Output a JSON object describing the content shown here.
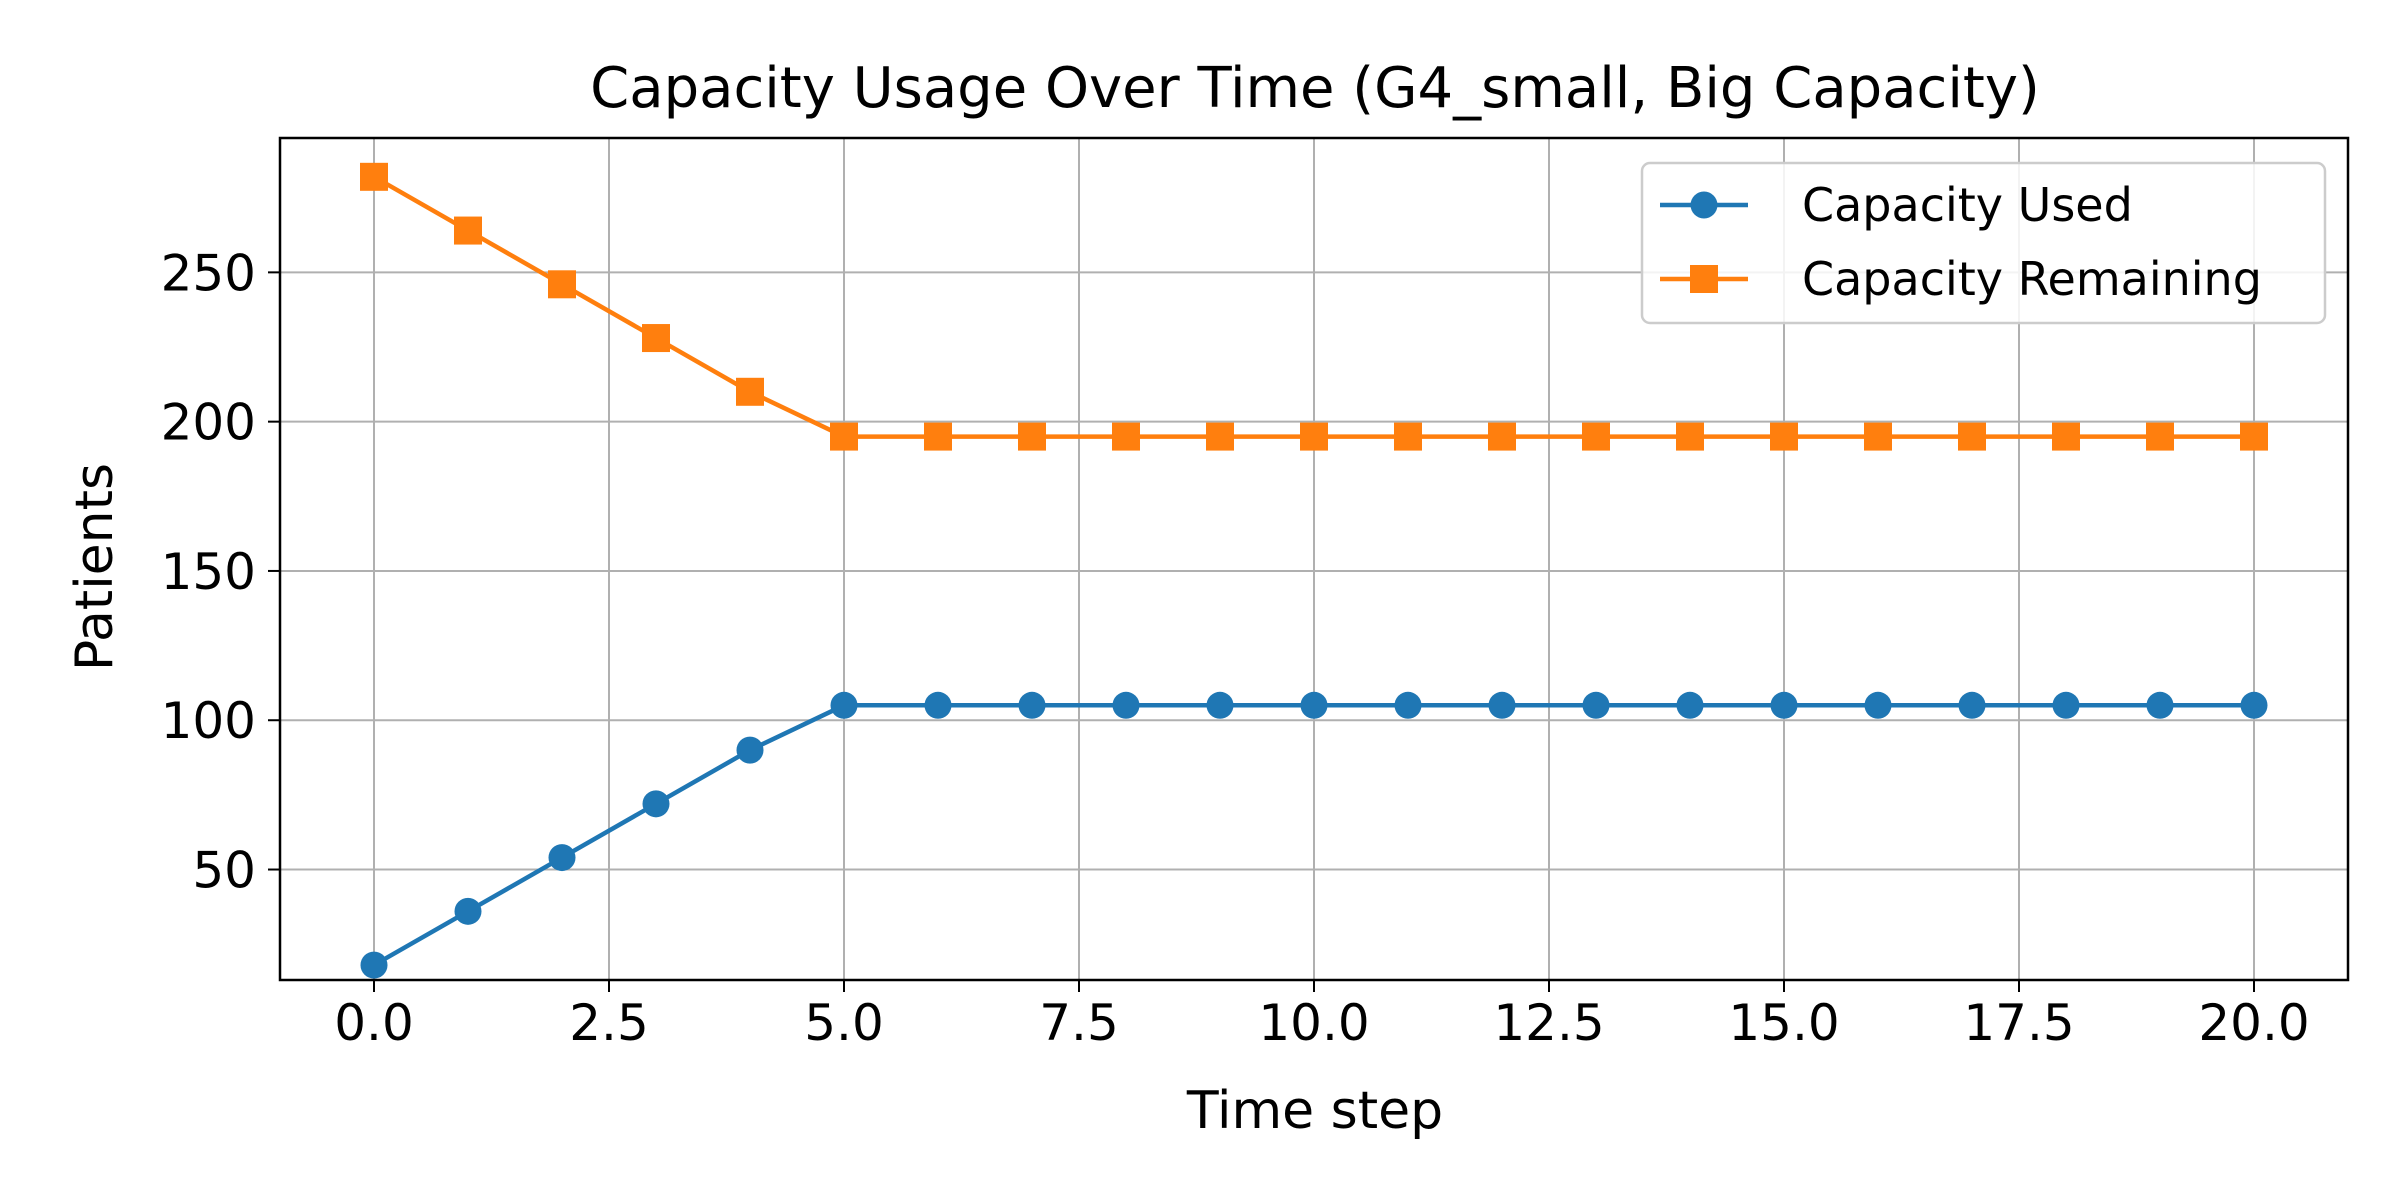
{
  "chart_data": {
    "type": "line",
    "title": "Capacity Usage Over Time (G4_small, Big Capacity)",
    "xlabel": "Time step",
    "ylabel": "Patients",
    "xlim": [
      -1.0,
      21.0
    ],
    "ylim": [
      13,
      295
    ],
    "xticks": [
      0.0,
      2.5,
      5.0,
      7.5,
      10.0,
      12.5,
      15.0,
      17.5,
      20.0
    ],
    "xtick_labels": [
      "0.0",
      "2.5",
      "5.0",
      "7.5",
      "10.0",
      "12.5",
      "15.0",
      "17.5",
      "20.0"
    ],
    "yticks": [
      50,
      100,
      150,
      200,
      250
    ],
    "ytick_labels": [
      "50",
      "100",
      "150",
      "200",
      "250"
    ],
    "grid": true,
    "legend_position": "top-right",
    "x": [
      0,
      1,
      2,
      3,
      4,
      5,
      6,
      7,
      8,
      9,
      10,
      11,
      12,
      13,
      14,
      15,
      16,
      17,
      18,
      19,
      20
    ],
    "series": [
      {
        "name": "Capacity Used",
        "color": "#1f77b4",
        "marker": "circle",
        "values": [
          18,
          36,
          54,
          72,
          90,
          105,
          105,
          105,
          105,
          105,
          105,
          105,
          105,
          105,
          105,
          105,
          105,
          105,
          105,
          105,
          105
        ]
      },
      {
        "name": "Capacity Remaining",
        "color": "#ff7f0e",
        "marker": "square",
        "values": [
          282,
          264,
          246,
          228,
          210,
          195,
          195,
          195,
          195,
          195,
          195,
          195,
          195,
          195,
          195,
          195,
          195,
          195,
          195,
          195,
          195
        ]
      }
    ]
  }
}
